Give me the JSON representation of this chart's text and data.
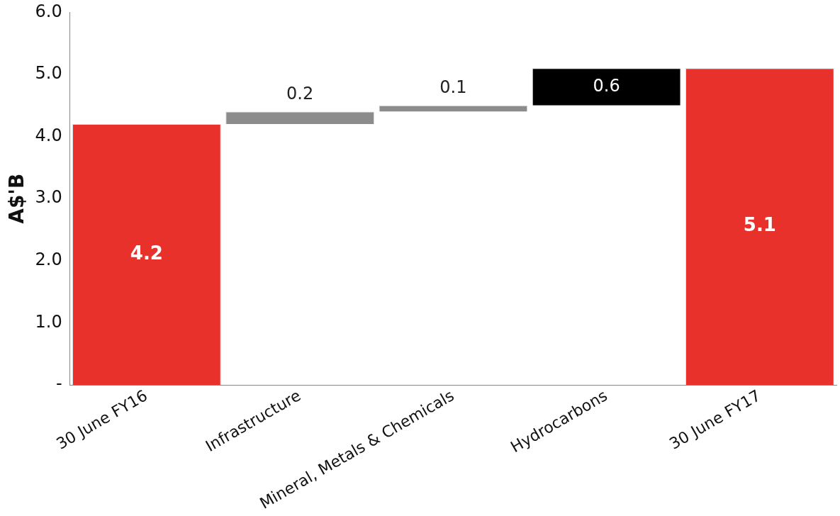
{
  "chart_data": {
    "type": "bar",
    "ylabel": "A$'B",
    "categories": [
      "30 June FY16",
      "Infrastructure",
      "Mineral, Metals & Chemicals",
      "Hydrocarbons",
      "30 June FY17"
    ],
    "values": [
      4.2,
      0.2,
      0.1,
      0.6,
      5.1
    ],
    "base": [
      0,
      4.2,
      4.4,
      4.5,
      0
    ],
    "colors": [
      "#e8312a",
      "#8c8c8c",
      "#8c8c8c",
      "#000000",
      "#e8312a"
    ],
    "ylim": [
      0,
      6
    ],
    "yticks": [
      {
        "value": 0,
        "label": "-"
      },
      {
        "value": 1,
        "label": "1.0"
      },
      {
        "value": 2,
        "label": "2.0"
      },
      {
        "value": 3,
        "label": "3.0"
      },
      {
        "value": 4,
        "label": "4.0"
      },
      {
        "value": 5,
        "label": "5.0"
      },
      {
        "value": 6,
        "label": "6.0"
      }
    ],
    "data_labels": true,
    "grid": false,
    "legend": false
  }
}
